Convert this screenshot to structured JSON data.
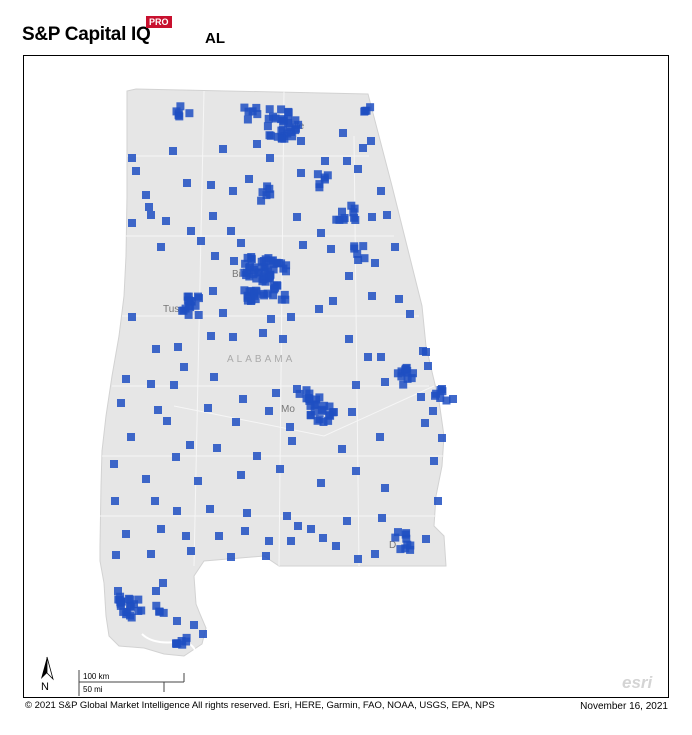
{
  "header": {
    "brand": "S&P Capital IQ",
    "pro_badge": "PRO",
    "region_code": "AL"
  },
  "map": {
    "state_name": "ALABAMA",
    "land_color": "#e6e6e6",
    "marker_color": "#1f4fc2",
    "city_labels": [
      {
        "name": "Huntsville",
        "visible": "ille"
      },
      {
        "name": "Birmingham",
        "visible": "Bi"
      },
      {
        "name": "Tuscaloosa",
        "visible": "Tus"
      },
      {
        "name": "Montgomery",
        "visible": "Mo"
      },
      {
        "name": "Dothan",
        "visible": "D"
      }
    ],
    "north_label": "N",
    "scale_km": "100 km",
    "scale_mi": "50 mi",
    "esri_logo": "esri"
  },
  "footer": {
    "copyright": "© 2021 S&P Global Market Intelligence All rights reserved. Esri, HERE, Garmin, FAO, NOAA, USGS, EPA, NPS",
    "date": "November 16, 2021"
  }
}
